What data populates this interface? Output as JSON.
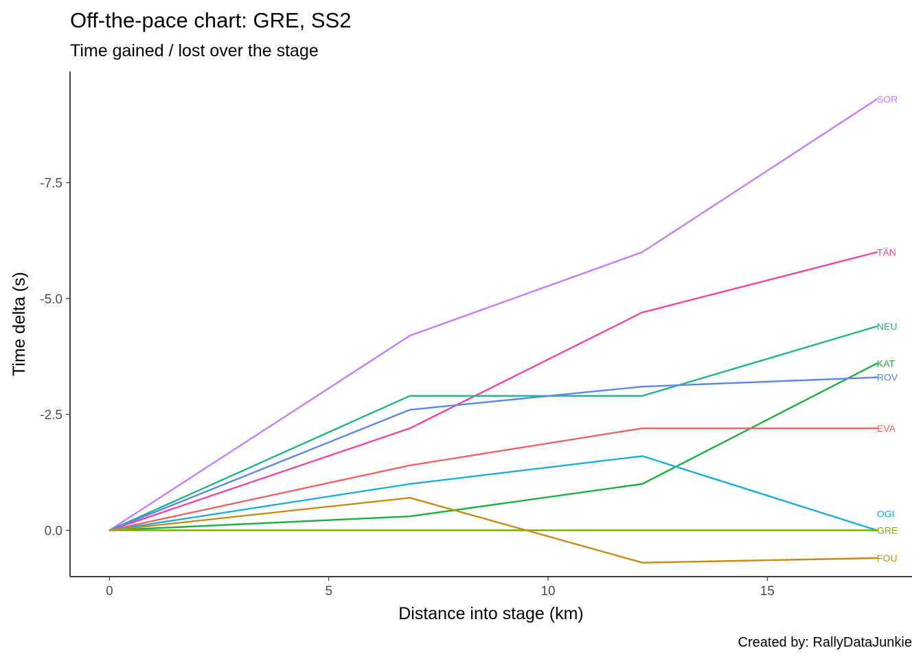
{
  "chart_data": {
    "type": "line",
    "title": "Off-the-pace chart: GRE, SS2",
    "subtitle": "Time gained / lost over the stage",
    "xlabel": "Distance into stage (km)",
    "ylabel": "Time delta (s)",
    "caption": "Created by: RallyDataJunkie",
    "xlim": [
      -0.9,
      18.3
    ],
    "ylim": [
      1.0,
      -9.9
    ],
    "y_reversed": true,
    "grid": false,
    "legend": "none (direct end labels)",
    "x_ticks": [
      0,
      5,
      10,
      15
    ],
    "x_tick_labels": [
      "0",
      "5",
      "10",
      "15"
    ],
    "y_ticks": [
      -7.5,
      -5.0,
      -2.5,
      0.0
    ],
    "y_tick_labels": [
      "-7.5",
      "-5.0",
      "-2.5",
      "0.0"
    ],
    "x": [
      0,
      6.85,
      12.15,
      17.5
    ],
    "series": [
      {
        "name": "SOR",
        "color": "#C77CFF",
        "values": [
          0,
          -4.2,
          -6.0,
          -9.3
        ]
      },
      {
        "name": "TÄN",
        "color": "#F8439E",
        "values": [
          0,
          -2.2,
          -4.7,
          -6.0
        ]
      },
      {
        "name": "NEU",
        "color": "#22B38A",
        "values": [
          0,
          -2.9,
          -2.9,
          -4.4
        ]
      },
      {
        "name": "KAT",
        "color": "#1CAF3E",
        "values": [
          0,
          -0.3,
          -1.0,
          -3.6
        ]
      },
      {
        "name": "ROV",
        "color": "#5B86F0",
        "values": [
          0,
          -2.6,
          -3.1,
          -3.3
        ]
      },
      {
        "name": "EVA",
        "color": "#EE6462",
        "values": [
          0,
          -1.4,
          -2.2,
          -2.2
        ]
      },
      {
        "name": "OGI",
        "color": "#1AACDB",
        "values": [
          0,
          -1.0,
          -1.6,
          0.0
        ]
      },
      {
        "name": "GRE",
        "color": "#7CAE00",
        "values": [
          0,
          0,
          0,
          0
        ]
      },
      {
        "name": "FOU",
        "color": "#C98A12",
        "values": [
          0,
          -0.7,
          0.7,
          0.6
        ]
      }
    ]
  }
}
